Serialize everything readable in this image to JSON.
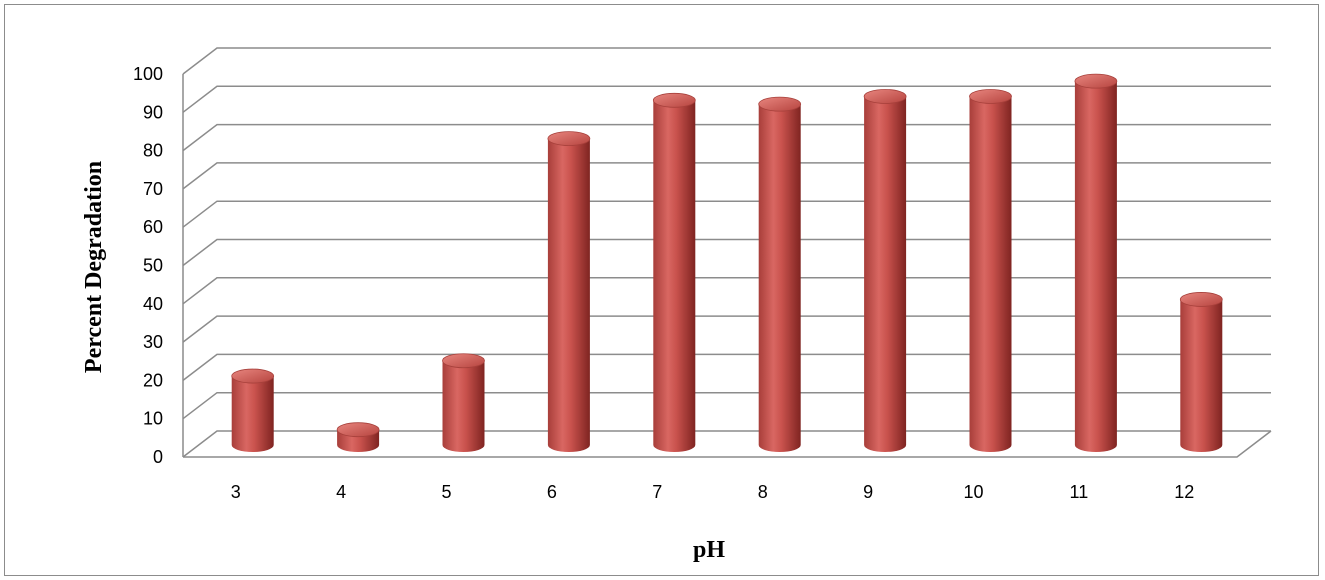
{
  "chart_data": {
    "type": "bar",
    "style": "3d-cylinder",
    "title": "",
    "xlabel": "pH",
    "ylabel": "Percent Degradation",
    "categories": [
      "3",
      "4",
      "5",
      "6",
      "7",
      "8",
      "9",
      "10",
      "11",
      "12"
    ],
    "values": [
      18,
      4,
      22,
      80,
      90,
      89,
      91,
      91,
      95,
      38
    ],
    "ylim": [
      0,
      100
    ],
    "yticks": [
      0,
      10,
      20,
      30,
      40,
      50,
      60,
      70,
      80,
      90,
      100
    ],
    "grid": true,
    "legend": "none",
    "colors": {
      "bar": "#c0504d",
      "bar_dark": "#8e2a27",
      "bar_light": "#e07a75",
      "grid": "#8c8c8c"
    }
  }
}
